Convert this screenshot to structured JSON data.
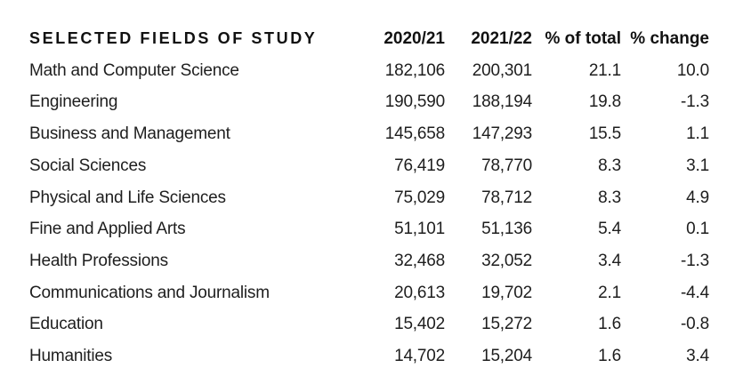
{
  "table": {
    "header": {
      "field_label": "SELECTED FIELDS OF STUDY",
      "columns": [
        "2020/21",
        "2021/22",
        "% of total",
        "% change"
      ]
    },
    "rows": [
      {
        "field": "Math and Computer Science",
        "y2020": "182,106",
        "y2021": "200,301",
        "pct_total": "21.1",
        "pct_change": "10.0"
      },
      {
        "field": "Engineering",
        "y2020": "190,590",
        "y2021": "188,194",
        "pct_total": "19.8",
        "pct_change": "-1.3"
      },
      {
        "field": "Business and Management",
        "y2020": "145,658",
        "y2021": "147,293",
        "pct_total": "15.5",
        "pct_change": "1.1"
      },
      {
        "field": "Social Sciences",
        "y2020": "76,419",
        "y2021": "78,770",
        "pct_total": "8.3",
        "pct_change": "3.1"
      },
      {
        "field": "Physical and Life Sciences",
        "y2020": "75,029",
        "y2021": "78,712",
        "pct_total": "8.3",
        "pct_change": "4.9"
      },
      {
        "field": "Fine and Applied Arts",
        "y2020": "51,101",
        "y2021": "51,136",
        "pct_total": "5.4",
        "pct_change": "0.1"
      },
      {
        "field": "Health Professions",
        "y2020": "32,468",
        "y2021": "32,052",
        "pct_total": "3.4",
        "pct_change": "-1.3"
      },
      {
        "field": "Communications and Journalism",
        "y2020": "20,613",
        "y2021": "19,702",
        "pct_total": "2.1",
        "pct_change": "-4.4"
      },
      {
        "field": "Education",
        "y2020": "15,402",
        "y2021": "15,272",
        "pct_total": "1.6",
        "pct_change": "-0.8"
      },
      {
        "field": "Humanities",
        "y2020": "14,702",
        "y2021": "15,204",
        "pct_total": "1.6",
        "pct_change": "3.4"
      }
    ]
  },
  "colors": {
    "background": "#ffffff",
    "body_text": "#1e1e1e",
    "header_text": "#111111"
  },
  "chart_data": {
    "type": "table",
    "title": "SELECTED FIELDS OF STUDY",
    "columns": [
      "SELECTED FIELDS OF STUDY",
      "2020/21",
      "2021/22",
      "% of total",
      "% change"
    ],
    "rows": [
      [
        "Math and Computer Science",
        182106,
        200301,
        21.1,
        10.0
      ],
      [
        "Engineering",
        190590,
        188194,
        19.8,
        -1.3
      ],
      [
        "Business and Management",
        145658,
        147293,
        15.5,
        1.1
      ],
      [
        "Social Sciences",
        76419,
        78770,
        8.3,
        3.1
      ],
      [
        "Physical and Life Sciences",
        75029,
        78712,
        8.3,
        4.9
      ],
      [
        "Fine and Applied Arts",
        51101,
        51136,
        5.4,
        0.1
      ],
      [
        "Health Professions",
        32468,
        32052,
        3.4,
        -1.3
      ],
      [
        "Communications and Journalism",
        20613,
        19702,
        2.1,
        -4.4
      ],
      [
        "Education",
        15402,
        15272,
        1.6,
        -0.8
      ],
      [
        "Humanities",
        14702,
        15204,
        1.6,
        3.4
      ]
    ]
  }
}
